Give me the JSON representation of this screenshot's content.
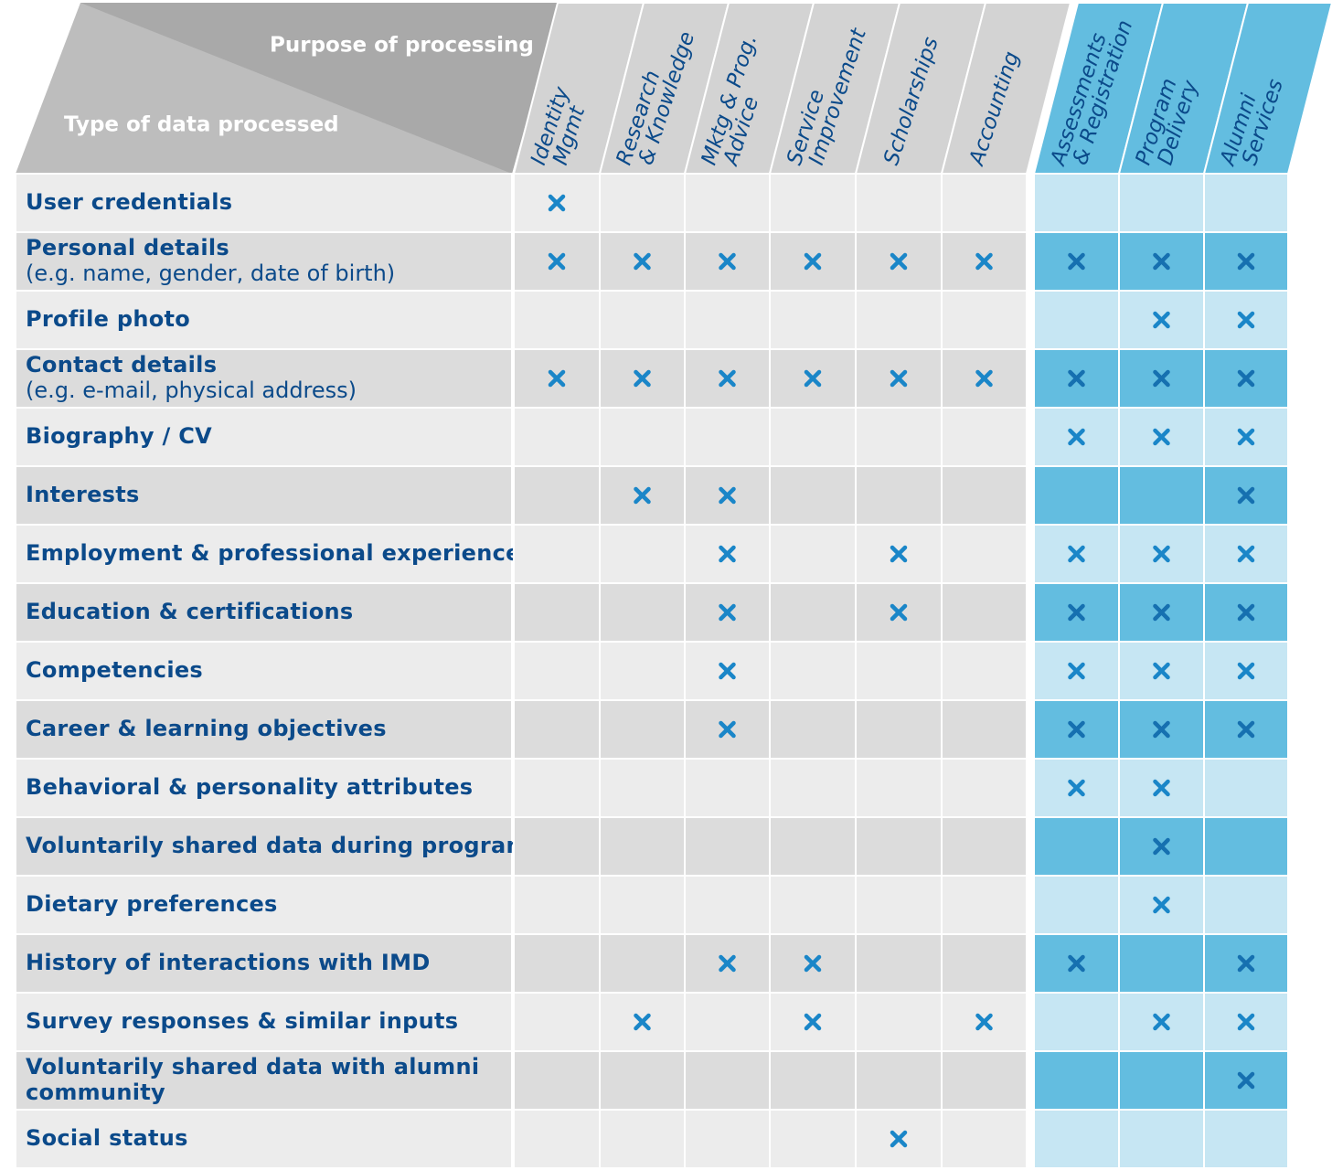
{
  "header": {
    "purpose_label": "Purpose of processing",
    "type_label": "Type of data processed",
    "columns": [
      {
        "lines": [
          "Identity",
          "Mgmt"
        ],
        "group": "gray"
      },
      {
        "lines": [
          "Research",
          "& Knowledge"
        ],
        "group": "gray"
      },
      {
        "lines": [
          "Mktg & Prog.",
          "Advice"
        ],
        "group": "gray"
      },
      {
        "lines": [
          "Service",
          "Improvement"
        ],
        "group": "gray"
      },
      {
        "lines": [
          "Scholarships"
        ],
        "group": "gray"
      },
      {
        "lines": [
          "Accounting"
        ],
        "group": "gray"
      },
      {
        "lines": [
          "Assessments",
          "& Registration"
        ],
        "group": "blue"
      },
      {
        "lines": [
          "Program",
          "Delivery"
        ],
        "group": "blue"
      },
      {
        "lines": [
          "Alumni",
          "Services"
        ],
        "group": "blue"
      }
    ]
  },
  "table": {
    "rows": [
      {
        "label": [
          "User credentials"
        ],
        "cells": [
          true,
          false,
          false,
          false,
          false,
          false,
          false,
          false,
          false
        ]
      },
      {
        "label": [
          "Personal details"
        ],
        "note": "(e.g. name, gender, date of birth)",
        "cells": [
          true,
          true,
          true,
          true,
          true,
          true,
          true,
          true,
          true
        ]
      },
      {
        "label": [
          "Profile photo"
        ],
        "cells": [
          false,
          false,
          false,
          false,
          false,
          false,
          false,
          true,
          true
        ]
      },
      {
        "label": [
          "Contact details"
        ],
        "note": "(e.g. e-mail, physical address)",
        "cells": [
          true,
          true,
          true,
          true,
          true,
          true,
          true,
          true,
          true
        ]
      },
      {
        "label": [
          "Biography / CV"
        ],
        "cells": [
          false,
          false,
          false,
          false,
          false,
          false,
          true,
          true,
          true
        ]
      },
      {
        "label": [
          "Interests"
        ],
        "cells": [
          false,
          true,
          true,
          false,
          false,
          false,
          false,
          false,
          true
        ]
      },
      {
        "label": [
          "Employment & professional experience"
        ],
        "cells": [
          false,
          false,
          true,
          false,
          true,
          false,
          true,
          true,
          true
        ]
      },
      {
        "label": [
          "Education & certifications"
        ],
        "cells": [
          false,
          false,
          true,
          false,
          true,
          false,
          true,
          true,
          true
        ]
      },
      {
        "label": [
          "Competencies"
        ],
        "cells": [
          false,
          false,
          true,
          false,
          false,
          false,
          true,
          true,
          true
        ]
      },
      {
        "label": [
          "Career & learning objectives"
        ],
        "cells": [
          false,
          false,
          true,
          false,
          false,
          false,
          true,
          true,
          true
        ]
      },
      {
        "label": [
          "Behavioral & personality attributes"
        ],
        "cells": [
          false,
          false,
          false,
          false,
          false,
          false,
          true,
          true,
          false
        ]
      },
      {
        "label": [
          "Voluntarily shared data during programs"
        ],
        "cells": [
          false,
          false,
          false,
          false,
          false,
          false,
          false,
          true,
          false
        ]
      },
      {
        "label": [
          "Dietary preferences"
        ],
        "cells": [
          false,
          false,
          false,
          false,
          false,
          false,
          false,
          true,
          false
        ]
      },
      {
        "label": [
          "History of interactions with IMD"
        ],
        "cells": [
          false,
          false,
          true,
          true,
          false,
          false,
          true,
          false,
          true
        ]
      },
      {
        "label": [
          "Survey responses & similar inputs"
        ],
        "cells": [
          false,
          true,
          false,
          true,
          false,
          true,
          false,
          true,
          true
        ]
      },
      {
        "label": [
          "Voluntarily shared data with alumni",
          "community"
        ],
        "cells": [
          false,
          false,
          false,
          false,
          false,
          false,
          false,
          false,
          true
        ]
      },
      {
        "label": [
          "Social status"
        ],
        "cells": [
          false,
          false,
          false,
          false,
          true,
          false,
          false,
          false,
          false
        ]
      }
    ]
  }
}
